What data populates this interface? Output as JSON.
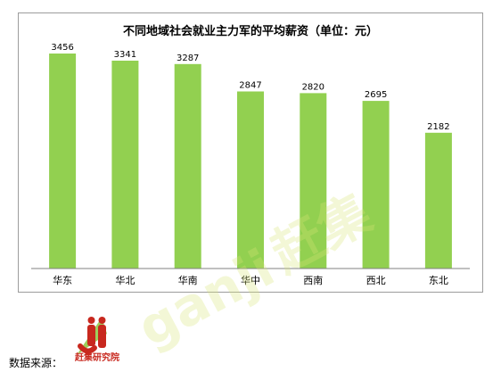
{
  "chart_data": {
    "type": "bar",
    "title": "不同地域社会就业主力军的平均薪资（单位：元）",
    "categories": [
      "华东",
      "华北",
      "华南",
      "华中",
      "西南",
      "西北",
      "东北"
    ],
    "values": [
      3456,
      3341,
      3287,
      2847,
      2820,
      2695,
      2182
    ],
    "ylim": [
      0,
      3700
    ],
    "grid": false,
    "bar_color": "#92d050"
  },
  "source": {
    "label": "数据来源：",
    "logo_text": "赶集研究院"
  },
  "colors": {
    "frame": "#9c9c9c",
    "axis": "#808080",
    "logo_red": "#c8281e",
    "logo_green": "#8dc63f"
  }
}
